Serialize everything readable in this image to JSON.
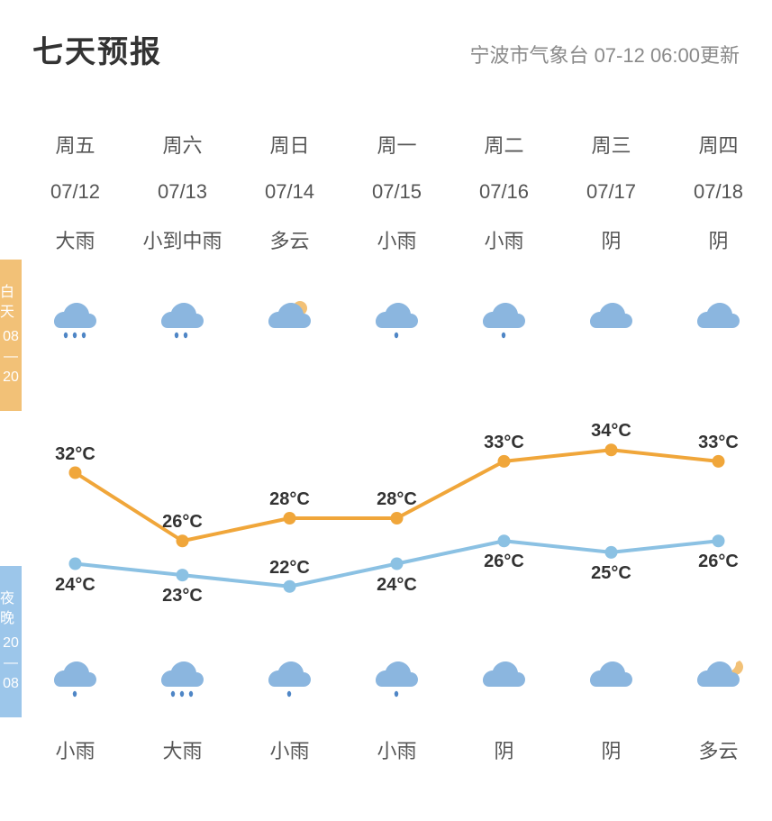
{
  "header": {
    "title": "七天预报",
    "update": "宁波市气象台 07-12 06:00更新"
  },
  "side": {
    "day_label": "白天",
    "day_time": "08—20",
    "night_label": "夜晚",
    "night_time": "20—08"
  },
  "days": [
    {
      "weekday": "周五",
      "date": "07/12",
      "day_cond": "大雨",
      "day_icon": "heavy-rain",
      "night_icon": "light-rain",
      "night_cond": "小雨"
    },
    {
      "weekday": "周六",
      "date": "07/13",
      "day_cond": "小到中雨",
      "day_icon": "mod-rain",
      "night_icon": "heavy-rain",
      "night_cond": "大雨"
    },
    {
      "weekday": "周日",
      "date": "07/14",
      "day_cond": "多云",
      "day_icon": "partly-sunny",
      "night_icon": "light-rain",
      "night_cond": "小雨"
    },
    {
      "weekday": "周一",
      "date": "07/15",
      "day_cond": "小雨",
      "day_icon": "light-rain",
      "night_icon": "light-rain",
      "night_cond": "小雨"
    },
    {
      "weekday": "周二",
      "date": "07/16",
      "day_cond": "小雨",
      "day_icon": "light-rain",
      "night_icon": "overcast",
      "night_cond": "阴"
    },
    {
      "weekday": "周三",
      "date": "07/17",
      "day_cond": "阴",
      "day_icon": "overcast",
      "night_icon": "overcast",
      "night_cond": "阴"
    },
    {
      "weekday": "周四",
      "date": "07/18",
      "day_cond": "阴",
      "day_icon": "overcast",
      "night_icon": "partly-moon",
      "night_cond": "多云"
    }
  ],
  "chart": {
    "type": "line",
    "high": {
      "values": [
        32,
        26,
        28,
        28,
        33,
        34,
        33
      ],
      "labels": [
        "32°C",
        "26°C",
        "28°C",
        "28°C",
        "33°C",
        "34°C",
        "33°C"
      ],
      "color": "#f0a63a",
      "point_radius": 7,
      "line_width": 4
    },
    "low": {
      "values": [
        24,
        23,
        22,
        24,
        26,
        25,
        26
      ],
      "labels": [
        "24°C",
        "23°C",
        "22°C",
        "24°C",
        "26°C",
        "25°C",
        "26°C"
      ],
      "color": "#8bc1e3",
      "point_radius": 7,
      "line_width": 4
    },
    "ylim": [
      20,
      36
    ],
    "label_fontsize": 20,
    "label_color": "#333333",
    "background_color": "#ffffff"
  },
  "icon_style": {
    "cloud_fill": "#8bb6df",
    "rain_fill": "#4f86c6",
    "sun_fill": "#f2c177",
    "moon_fill": "#f2c177"
  }
}
